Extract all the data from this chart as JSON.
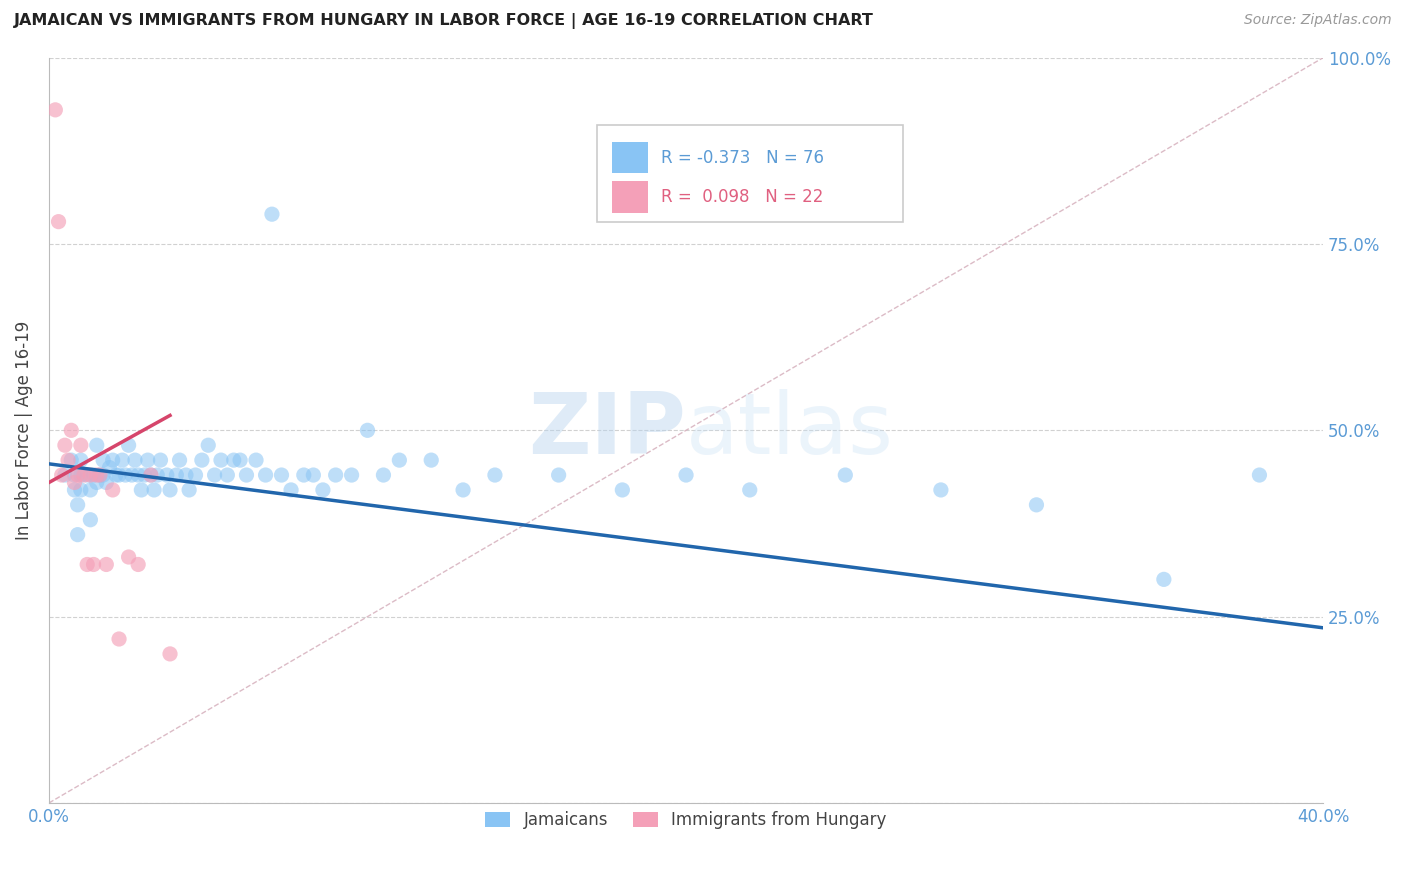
{
  "title": "JAMAICAN VS IMMIGRANTS FROM HUNGARY IN LABOR FORCE | AGE 16-19 CORRELATION CHART",
  "source": "Source: ZipAtlas.com",
  "ylabel": "In Labor Force | Age 16-19",
  "x_min": 0.0,
  "x_max": 0.4,
  "y_min": 0.0,
  "y_max": 1.0,
  "blue_color": "#89C4F4",
  "pink_color": "#F4A0B8",
  "blue_line_color": "#2166AC",
  "pink_line_color": "#D6456B",
  "diag_line_color": "#D8B4C0",
  "legend_R_blue": "-0.373",
  "legend_N_blue": "76",
  "legend_R_pink": "0.098",
  "legend_N_pink": "22",
  "legend_label_blue": "Jamaicans",
  "legend_label_pink": "Immigrants from Hungary",
  "blue_scatter_x": [
    0.005,
    0.007,
    0.008,
    0.008,
    0.009,
    0.009,
    0.01,
    0.01,
    0.01,
    0.012,
    0.013,
    0.013,
    0.014,
    0.015,
    0.015,
    0.016,
    0.017,
    0.017,
    0.018,
    0.019,
    0.02,
    0.021,
    0.022,
    0.023,
    0.024,
    0.025,
    0.026,
    0.027,
    0.028,
    0.029,
    0.03,
    0.031,
    0.032,
    0.033,
    0.034,
    0.035,
    0.037,
    0.038,
    0.04,
    0.041,
    0.043,
    0.044,
    0.046,
    0.048,
    0.05,
    0.052,
    0.054,
    0.056,
    0.058,
    0.06,
    0.062,
    0.065,
    0.068,
    0.07,
    0.073,
    0.076,
    0.08,
    0.083,
    0.086,
    0.09,
    0.095,
    0.1,
    0.105,
    0.11,
    0.12,
    0.13,
    0.14,
    0.16,
    0.18,
    0.2,
    0.22,
    0.25,
    0.28,
    0.31,
    0.35,
    0.38
  ],
  "blue_scatter_y": [
    0.44,
    0.46,
    0.42,
    0.44,
    0.4,
    0.36,
    0.44,
    0.46,
    0.42,
    0.44,
    0.42,
    0.38,
    0.44,
    0.48,
    0.43,
    0.44,
    0.46,
    0.44,
    0.43,
    0.45,
    0.46,
    0.44,
    0.44,
    0.46,
    0.44,
    0.48,
    0.44,
    0.46,
    0.44,
    0.42,
    0.44,
    0.46,
    0.44,
    0.42,
    0.44,
    0.46,
    0.44,
    0.42,
    0.44,
    0.46,
    0.44,
    0.42,
    0.44,
    0.46,
    0.48,
    0.44,
    0.46,
    0.44,
    0.46,
    0.46,
    0.44,
    0.46,
    0.44,
    0.79,
    0.44,
    0.42,
    0.44,
    0.44,
    0.42,
    0.44,
    0.44,
    0.5,
    0.44,
    0.46,
    0.46,
    0.42,
    0.44,
    0.44,
    0.42,
    0.44,
    0.42,
    0.44,
    0.42,
    0.4,
    0.3,
    0.44
  ],
  "pink_scatter_x": [
    0.002,
    0.003,
    0.004,
    0.005,
    0.006,
    0.007,
    0.008,
    0.009,
    0.01,
    0.011,
    0.012,
    0.013,
    0.014,
    0.015,
    0.016,
    0.018,
    0.02,
    0.022,
    0.025,
    0.028,
    0.032,
    0.038
  ],
  "pink_scatter_y": [
    0.93,
    0.78,
    0.44,
    0.48,
    0.46,
    0.5,
    0.43,
    0.44,
    0.48,
    0.44,
    0.32,
    0.44,
    0.32,
    0.44,
    0.44,
    0.32,
    0.42,
    0.22,
    0.33,
    0.32,
    0.44,
    0.2
  ],
  "blue_trend_x": [
    0.0,
    0.4
  ],
  "blue_trend_y": [
    0.455,
    0.235
  ],
  "pink_trend_x": [
    0.0,
    0.038
  ],
  "pink_trend_y": [
    0.43,
    0.52
  ],
  "diag_line_x": [
    0.0,
    0.4
  ],
  "diag_line_y": [
    0.0,
    1.0
  ]
}
